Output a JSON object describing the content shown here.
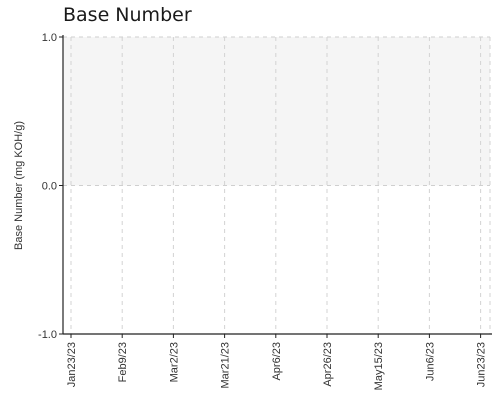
{
  "chart_data": {
    "type": "line",
    "title": "Base Number",
    "xlabel": "",
    "ylabel": "Base Number (mg KOH/g)",
    "ylim": [
      -1.0,
      1.0
    ],
    "y_ticks": [
      "1.0",
      "0.0",
      "-1.0"
    ],
    "y_tick_values": [
      1.0,
      0.0,
      -1.0
    ],
    "x_ticks": [
      "Jan23/23",
      "Feb9/23",
      "Mar2/23",
      "Mar21/23",
      "Apr6/23",
      "Apr26/23",
      "May15/23",
      "Jun6/23",
      "Jun23/23"
    ],
    "shaded_band": {
      "from": 0.0,
      "to": 1.0,
      "color": "#f5f5f5"
    },
    "grid": true,
    "series": []
  }
}
